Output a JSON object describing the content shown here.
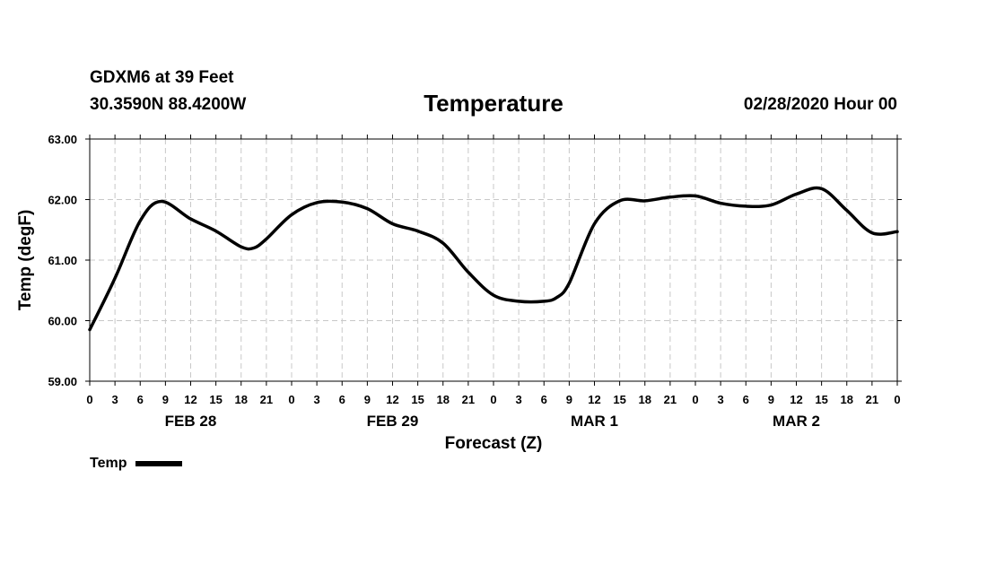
{
  "header": {
    "station": "GDXM6 at 39 Feet",
    "coords": "30.3590N 88.4200W",
    "title": "Temperature",
    "datetime": "02/28/2020 Hour 00"
  },
  "chart_data": {
    "type": "line",
    "title": "Temperature",
    "xlabel": "Forecast (Z)",
    "ylabel": "Temp (degF)",
    "ylim": [
      59,
      63
    ],
    "y_ticks": [
      "59.00",
      "60.00",
      "61.00",
      "62.00",
      "63.00"
    ],
    "x_unit": "forecast hour",
    "xlim": [
      0,
      96
    ],
    "x_tick_labels": [
      "0",
      "3",
      "6",
      "9",
      "12",
      "15",
      "18",
      "21",
      "0",
      "3",
      "6",
      "9",
      "12",
      "15",
      "18",
      "21",
      "0",
      "3",
      "6",
      "9",
      "12",
      "15",
      "18",
      "21",
      "0",
      "3",
      "6",
      "9",
      "12",
      "15",
      "18",
      "21",
      "0"
    ],
    "day_labels": [
      {
        "label": "FEB 28",
        "hour": 12
      },
      {
        "label": "FEB 29",
        "hour": 36
      },
      {
        "label": "MAR 1",
        "hour": 60
      },
      {
        "label": "MAR 2",
        "hour": 84
      }
    ],
    "grid": true,
    "legend_position": "bottom-left",
    "series": [
      {
        "name": "Temp",
        "color": "#000000",
        "x": [
          0,
          3,
          6,
          8.5,
          12,
          15,
          18,
          19.5,
          21,
          24,
          27,
          30,
          33,
          36,
          39,
          42,
          45,
          48,
          51,
          54,
          55.5,
          57,
          60,
          63,
          66,
          69,
          72,
          75,
          78,
          81,
          84,
          87,
          90,
          93,
          96
        ],
        "values": [
          59.85,
          60.7,
          61.65,
          61.97,
          61.68,
          61.48,
          61.22,
          61.2,
          61.35,
          61.75,
          61.95,
          61.96,
          61.85,
          61.6,
          61.48,
          61.28,
          60.8,
          60.42,
          60.32,
          60.32,
          60.38,
          60.62,
          61.6,
          61.98,
          61.98,
          62.04,
          62.06,
          61.94,
          61.89,
          61.91,
          62.09,
          62.18,
          61.82,
          61.45,
          61.47
        ]
      }
    ]
  },
  "legend": {
    "label": "Temp"
  }
}
